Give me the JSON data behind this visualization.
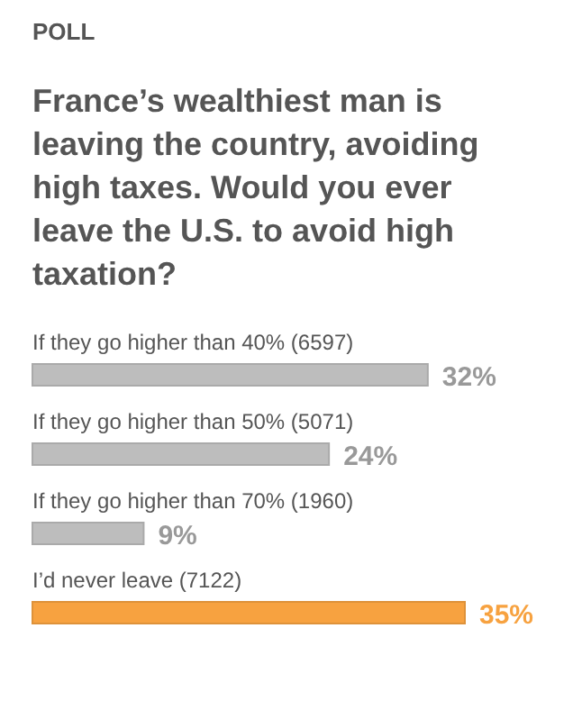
{
  "chart_data": {
    "type": "bar",
    "orientation": "horizontal",
    "subtitle": "POLL",
    "title": "France’s wealthiest man is leaving the country, avoiding high taxes. Would you ever leave the U.S. to avoid high taxation?",
    "categories": [
      "If they go higher than 40% (6597)",
      "If they go higher than 50% (5071)",
      "If they go higher than 70% (1960)",
      "I’d never leave (7122)"
    ],
    "values": [
      32,
      24,
      9,
      35
    ],
    "colors": [
      "#bdbdbd",
      "#bdbdbd",
      "#bdbdbd",
      "#f7a240"
    ],
    "value_labels": [
      "32%",
      "24%",
      "9%",
      "35%"
    ]
  }
}
